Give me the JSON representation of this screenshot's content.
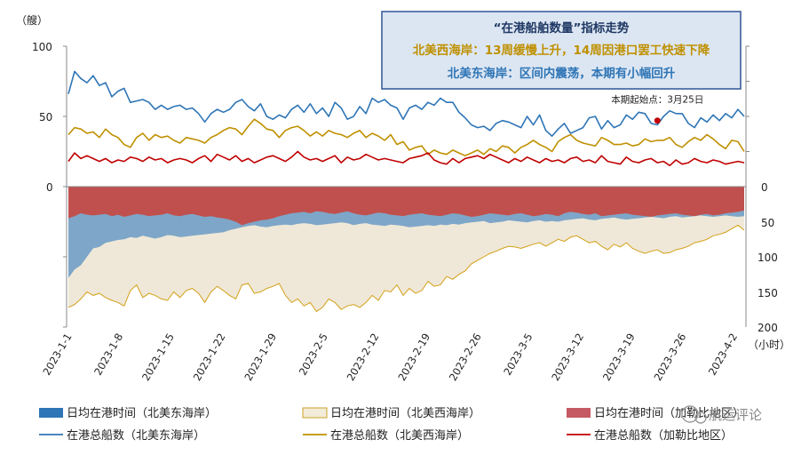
{
  "chart_data": {
    "type": "line",
    "x_labels": [
      "2023-1-1",
      "2023-1-8",
      "2023-1-15",
      "2023-1-22",
      "2023-1-29",
      "2023-2-5",
      "2023-2-12",
      "2023-2-19",
      "2023-2-26",
      "2023-3-5",
      "2023-3-12",
      "2023-3-19",
      "2023-3-26",
      "2023-4-2"
    ],
    "top_panel": {
      "unit_label": "（艘）",
      "ylim": [
        0,
        100
      ],
      "yticks": [
        "100",
        "50",
        "0"
      ],
      "series": [
        {
          "name": "在港总船数（北美东海岸）",
          "color": "#2e75b6",
          "values": [
            66,
            82,
            77,
            74,
            79,
            72,
            74,
            64,
            68,
            70,
            60,
            61,
            62,
            60,
            55,
            58,
            55,
            57,
            58,
            55,
            56,
            52,
            46,
            52,
            55,
            53,
            55,
            60,
            62,
            57,
            54,
            59,
            50,
            48,
            51,
            49,
            55,
            58,
            53,
            59,
            52,
            56,
            50,
            60,
            56,
            48,
            50,
            57,
            52,
            63,
            60,
            62,
            58,
            56,
            48,
            56,
            58,
            55,
            60,
            58,
            63,
            60,
            60,
            53,
            49,
            44,
            42,
            43,
            40,
            45,
            47,
            46,
            44,
            42,
            50,
            44,
            51,
            40,
            36,
            41,
            45,
            38,
            40,
            42,
            49,
            50,
            41,
            47,
            42,
            44,
            51,
            48,
            53,
            52,
            45,
            44,
            50,
            54,
            52,
            52,
            45,
            42,
            49,
            46,
            51,
            47,
            52,
            49,
            55,
            50
          ]
        },
        {
          "name": "在港总船数（北美西海岸）",
          "color": "#bf9000",
          "values": [
            37,
            42,
            41,
            38,
            39,
            35,
            41,
            37,
            35,
            30,
            28,
            35,
            38,
            33,
            37,
            35,
            36,
            33,
            31,
            35,
            34,
            33,
            31,
            35,
            37,
            40,
            42,
            41,
            37,
            43,
            48,
            45,
            41,
            40,
            35,
            40,
            42,
            43,
            40,
            36,
            39,
            36,
            40,
            38,
            37,
            35,
            38,
            40,
            35,
            38,
            36,
            33,
            37,
            30,
            32,
            26,
            28,
            29,
            23,
            26,
            24,
            23,
            26,
            24,
            22,
            24,
            26,
            23,
            27,
            25,
            29,
            28,
            24,
            28,
            30,
            33,
            30,
            28,
            25,
            32,
            35,
            37,
            33,
            31,
            30,
            29,
            35,
            33,
            30,
            30,
            31,
            29,
            30,
            34,
            32,
            33,
            33,
            35,
            30,
            28,
            32,
            35,
            33,
            37,
            34,
            30,
            27,
            33,
            32,
            25
          ]
        },
        {
          "name": "在港总船数（加勒比地区）",
          "color": "#c00000",
          "values": [
            18,
            24,
            20,
            22,
            20,
            18,
            20,
            17,
            19,
            18,
            21,
            20,
            18,
            21,
            19,
            20,
            17,
            19,
            20,
            19,
            17,
            20,
            22,
            18,
            23,
            21,
            19,
            22,
            18,
            20,
            17,
            19,
            21,
            22,
            20,
            18,
            21,
            25,
            21,
            19,
            20,
            18,
            20,
            22,
            17,
            21,
            19,
            20,
            23,
            21,
            19,
            20,
            19,
            18,
            17,
            20,
            21,
            22,
            24,
            19,
            17,
            16,
            20,
            17,
            20,
            21,
            22,
            20,
            23,
            21,
            19,
            17,
            20,
            18,
            21,
            19,
            17,
            20,
            18,
            19,
            17,
            20,
            21,
            18,
            19,
            17,
            22,
            18,
            17,
            16,
            21,
            18,
            17,
            19,
            20,
            17,
            18,
            15,
            19,
            16,
            17,
            20,
            18,
            17,
            19,
            18,
            16,
            17,
            18,
            17
          ]
        }
      ],
      "annotation": {
        "text": "本期起始点：3月25日",
        "x_index": 95,
        "y": 47,
        "color": "#c00000"
      }
    },
    "bottom_panel": {
      "unit_label": "（小时）",
      "ylim": [
        0,
        200
      ],
      "yticks": [
        "0",
        "50",
        "100",
        "150",
        "200"
      ],
      "type": "area",
      "series": [
        {
          "name": "日均在港时间（加勒比地区）",
          "color": "#c0504d",
          "values": [
            45,
            42,
            38,
            40,
            41,
            40,
            39,
            42,
            40,
            43,
            41,
            39,
            40,
            42,
            41,
            40,
            38,
            41,
            42,
            40,
            39,
            41,
            43,
            42,
            44,
            45,
            47,
            50,
            55,
            52,
            50,
            48,
            47,
            45,
            42,
            40,
            38,
            37,
            36,
            38,
            35,
            36,
            38,
            39,
            37,
            35,
            38,
            40,
            41,
            39,
            37,
            38,
            40,
            41,
            42,
            40,
            39,
            38,
            40,
            41,
            42,
            40,
            38,
            39,
            41,
            43,
            42,
            40,
            38,
            39,
            40,
            41,
            39,
            38,
            40,
            42,
            41,
            39,
            40,
            42,
            38,
            36,
            37,
            39,
            40,
            38,
            42,
            41,
            40,
            39,
            38,
            40,
            41,
            42,
            43,
            41,
            40,
            39,
            38,
            40,
            41,
            42,
            40,
            39,
            41,
            40,
            38,
            37,
            36,
            34
          ]
        },
        {
          "name": "日均在港时间（北美东海岸）",
          "color": "#7ea6c8",
          "values": [
            130,
            118,
            112,
            100,
            88,
            86,
            80,
            78,
            76,
            75,
            72,
            73,
            70,
            72,
            74,
            72,
            69,
            70,
            72,
            71,
            70,
            69,
            68,
            67,
            66,
            65,
            62,
            60,
            58,
            56,
            55,
            57,
            58,
            56,
            55,
            54,
            55,
            53,
            52,
            53,
            55,
            54,
            53,
            52,
            51,
            52,
            55,
            53,
            52,
            54,
            55,
            56,
            54,
            55,
            56,
            58,
            57,
            56,
            55,
            56,
            54,
            55,
            53,
            54,
            52,
            51,
            50,
            49,
            52,
            51,
            50,
            48,
            49,
            50,
            51,
            49,
            48,
            50,
            49,
            50,
            48,
            47,
            46,
            45,
            47,
            48,
            46,
            45,
            44,
            46,
            47,
            46,
            45,
            44,
            43,
            44,
            45,
            43,
            42,
            44,
            43,
            42,
            41,
            42,
            43,
            42,
            41,
            42,
            43,
            42
          ]
        },
        {
          "name": "日均在港时间（北美西海岸）",
          "color": "#efe8d8",
          "values": [
            172,
            168,
            160,
            150,
            155,
            152,
            158,
            162,
            165,
            170,
            148,
            140,
            158,
            152,
            155,
            160,
            162,
            150,
            158,
            148,
            145,
            152,
            165,
            150,
            142,
            148,
            155,
            160,
            140,
            138,
            152,
            150,
            145,
            142,
            138,
            155,
            165,
            160,
            170,
            165,
            178,
            172,
            160,
            165,
            175,
            170,
            168,
            172,
            165,
            155,
            162,
            148,
            150,
            140,
            155,
            145,
            152,
            148,
            135,
            142,
            140,
            128,
            132,
            125,
            120,
            110,
            105,
            100,
            95,
            92,
            88,
            85,
            86,
            88,
            85,
            82,
            80,
            85,
            80,
            75,
            78,
            72,
            70,
            75,
            80,
            78,
            85,
            90,
            82,
            86,
            80,
            88,
            92,
            95,
            92,
            90,
            95,
            94,
            90,
            88,
            85,
            80,
            78,
            75,
            70,
            68,
            65,
            60,
            55,
            62
          ]
        }
      ]
    },
    "info_box": {
      "title": "“在港船舶数量”指标走势",
      "line1": "北美西海岸：13周缓慢上升，14周因港口罢工快速下降",
      "line2": "北美东海岸：区间内震荡，本期有小幅回升",
      "title_color": "#1f3864",
      "line1_color": "#bf9000",
      "line2_color": "#2e75b6",
      "background": "#dce6f2",
      "border": "#2e5597"
    },
    "legend": [
      {
        "label": "日均在港时间（北美东海岸）",
        "kind": "area",
        "color": "#2e75b6"
      },
      {
        "label": "日均在港时间（北美西海岸）",
        "kind": "area",
        "color": "#f2ecd9"
      },
      {
        "label": "日均在港时间（加勒比地区）",
        "kind": "area",
        "color": "#c55a64"
      },
      {
        "label": "在港总船数（北美东海岸）",
        "kind": "line",
        "color": "#2e75b6"
      },
      {
        "label": "在港总船数（北美西海岸）",
        "kind": "line",
        "color": "#bf9000"
      },
      {
        "label": "在港总船数（加勒比地区）",
        "kind": "line",
        "color": "#c00000"
      }
    ],
    "watermark": "航运评论"
  }
}
